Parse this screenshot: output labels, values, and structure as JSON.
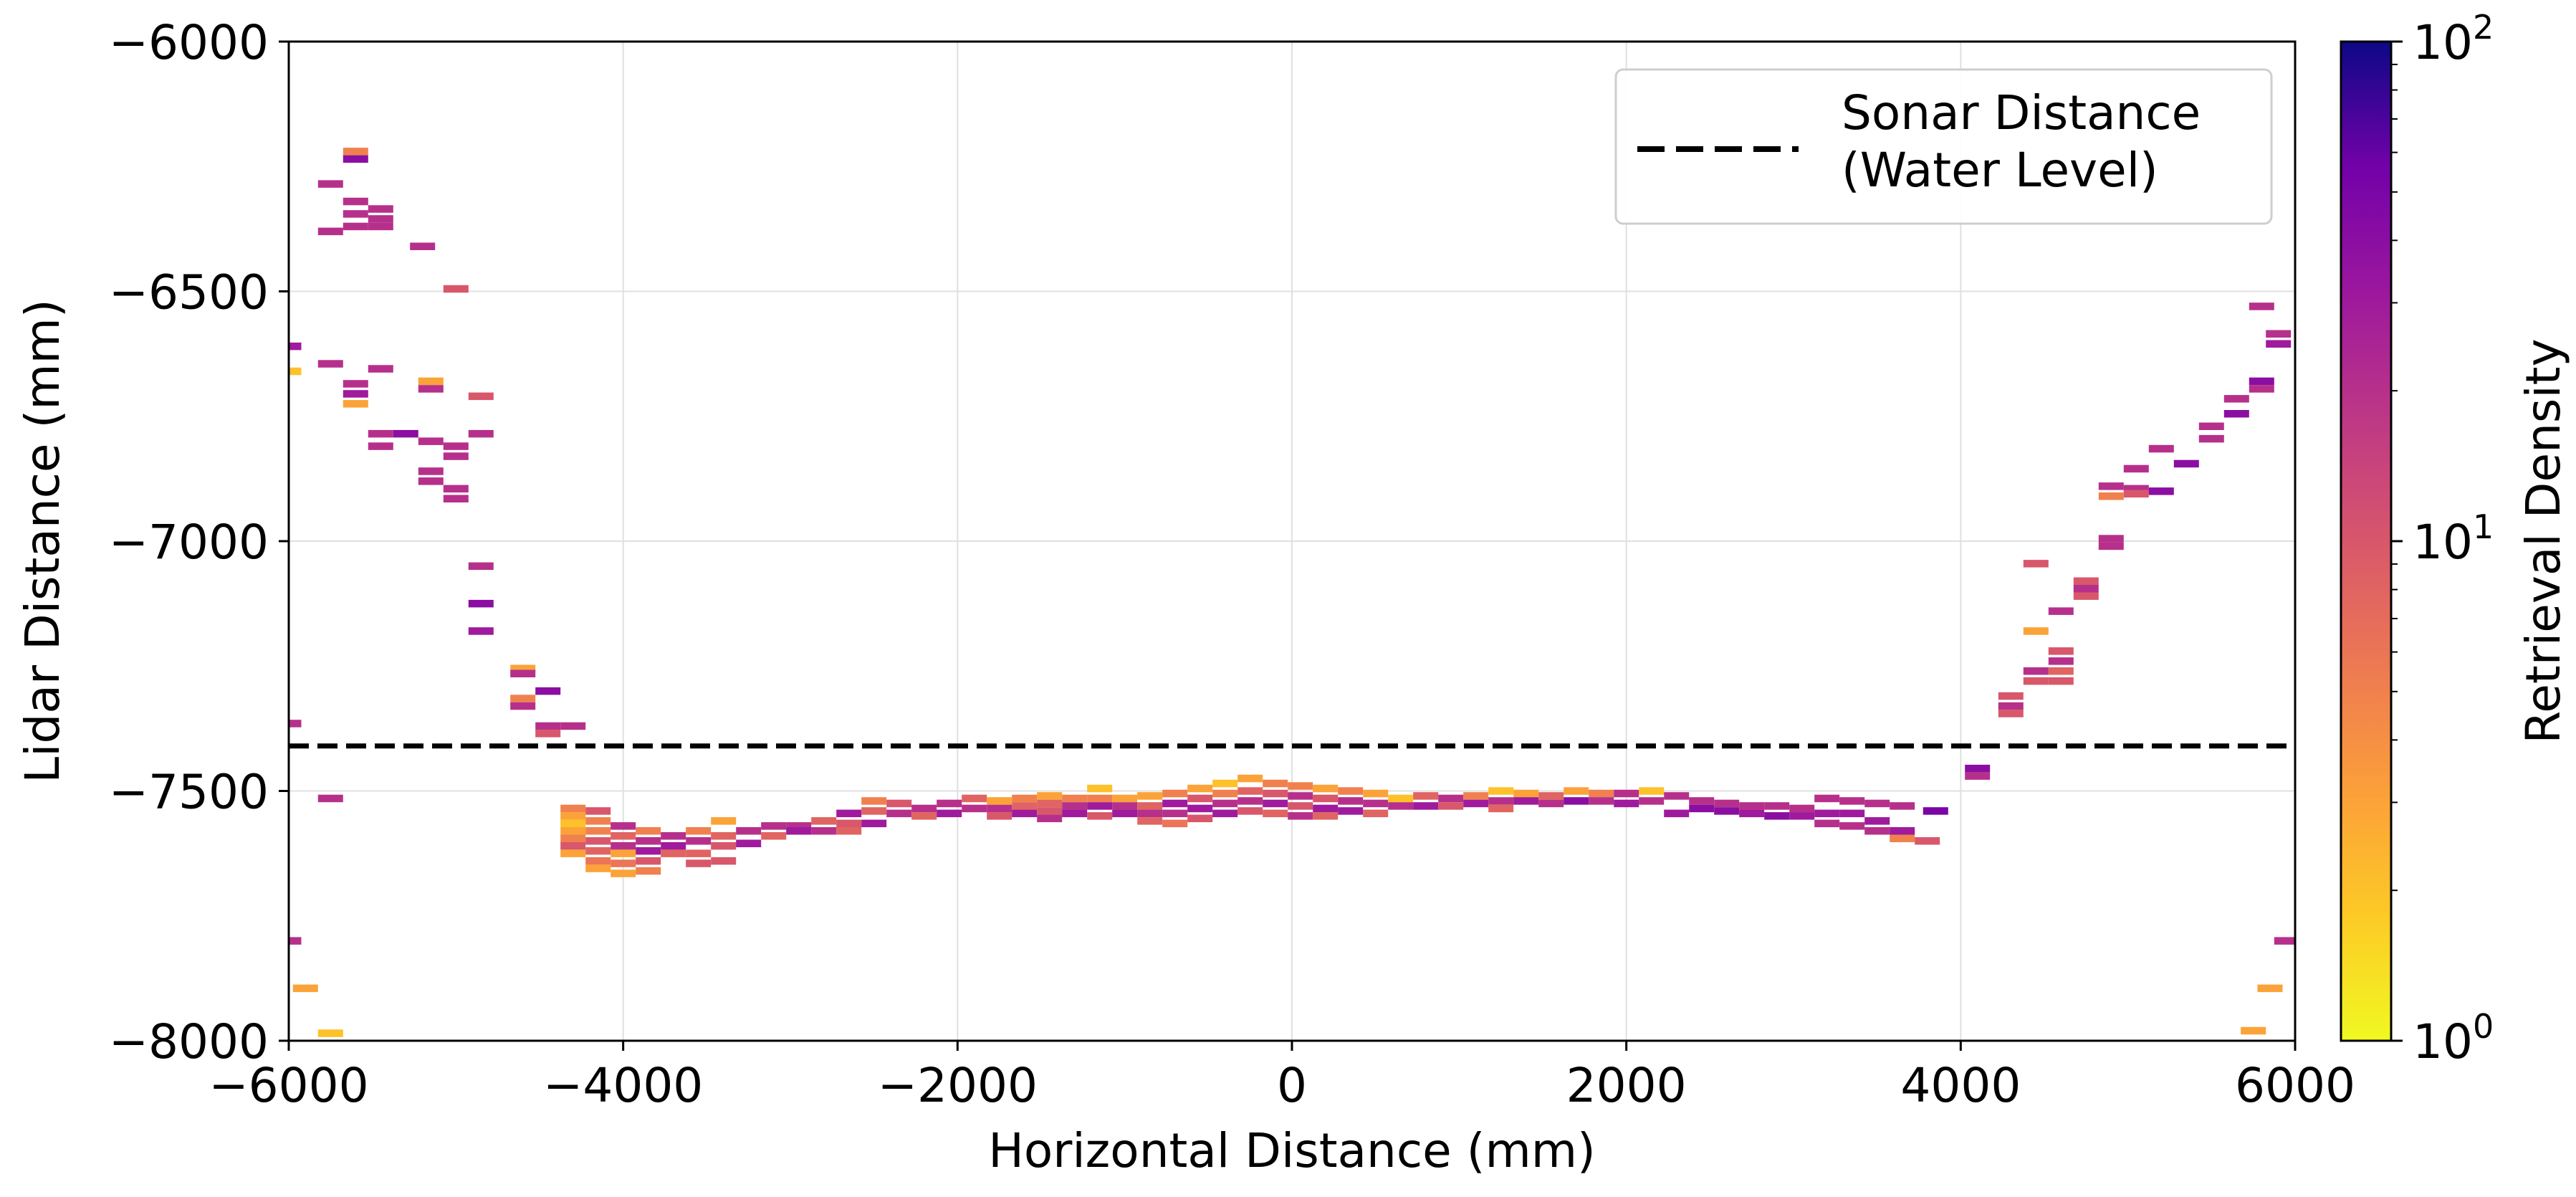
{
  "chart_data": {
    "type": "heatmap",
    "title": "",
    "xlabel": "Horizontal Distance (mm)",
    "ylabel": "Lidar Distance (mm)",
    "xlim": [
      -6000,
      6000
    ],
    "ylim": [
      -8000,
      -6000
    ],
    "x_ticks": [
      -6000,
      -4000,
      -2000,
      0,
      2000,
      4000,
      6000
    ],
    "y_ticks": [
      -6000,
      -6500,
      -7000,
      -7500,
      -8000
    ],
    "x_tick_labels": [
      "−6000",
      "−4000",
      "−2000",
      "0",
      "2000",
      "4000",
      "6000"
    ],
    "y_tick_labels": [
      "−6000",
      "−6500",
      "−7000",
      "−7500",
      "−8000"
    ],
    "grid": true,
    "colormap": "plasma_r",
    "colorbar": {
      "label": "Retrieval Density",
      "scale": "log",
      "range": [
        1,
        100
      ],
      "ticks": [
        {
          "value": 1,
          "base": "10",
          "exp": "0"
        },
        {
          "value": 10,
          "base": "10",
          "exp": "1"
        },
        {
          "value": 100,
          "base": "10",
          "exp": "2"
        }
      ]
    },
    "reference_line": {
      "label_line1": "Sonar Distance",
      "label_line2": "(Water Level)",
      "y": -7410,
      "style": "dashed",
      "color": "#000000"
    },
    "legend_position": "top-right",
    "bins_note": "cells: [x_center_mm, y_center_mm, density]",
    "cells": [
      [
        -6000,
        -6610,
        30
      ],
      [
        -6000,
        -6660,
        2
      ],
      [
        -6000,
        -7365,
        20
      ],
      [
        -6000,
        -7800,
        20
      ],
      [
        -5900,
        -7895,
        3
      ],
      [
        -5750,
        -7985,
        2
      ],
      [
        -5750,
        -6285,
        20
      ],
      [
        -5750,
        -6380,
        20
      ],
      [
        -5750,
        -6645,
        20
      ],
      [
        -5750,
        -7515,
        20
      ],
      [
        -5600,
        -6220,
        5
      ],
      [
        -5600,
        -6235,
        40
      ],
      [
        -5600,
        -6320,
        20
      ],
      [
        -5600,
        -6345,
        20
      ],
      [
        -5600,
        -6370,
        20
      ],
      [
        -5450,
        -6335,
        20
      ],
      [
        -5450,
        -6355,
        20
      ],
      [
        -5450,
        -6370,
        20
      ],
      [
        -5600,
        -6685,
        20
      ],
      [
        -5600,
        -6705,
        30
      ],
      [
        -5600,
        -6725,
        3
      ],
      [
        -5450,
        -6655,
        20
      ],
      [
        -5450,
        -6785,
        20
      ],
      [
        -5450,
        -6810,
        20
      ],
      [
        -5300,
        -6785,
        40
      ],
      [
        -5200,
        -6410,
        20
      ],
      [
        -5150,
        -6680,
        3
      ],
      [
        -5150,
        -6695,
        20
      ],
      [
        -5150,
        -6800,
        20
      ],
      [
        -5150,
        -6860,
        20
      ],
      [
        -5150,
        -6880,
        20
      ],
      [
        -5000,
        -6810,
        20
      ],
      [
        -5000,
        -6830,
        20
      ],
      [
        -5000,
        -6895,
        20
      ],
      [
        -5000,
        -6915,
        20
      ],
      [
        -5000,
        -6495,
        10
      ],
      [
        -4850,
        -6710,
        10
      ],
      [
        -4850,
        -6785,
        20
      ],
      [
        -4850,
        -7050,
        20
      ],
      [
        -4850,
        -7125,
        40
      ],
      [
        -4850,
        -7180,
        30
      ],
      [
        -4600,
        -7255,
        3
      ],
      [
        -4600,
        -7265,
        20
      ],
      [
        -4600,
        -7315,
        5
      ],
      [
        -4600,
        -7330,
        20
      ],
      [
        -4450,
        -7300,
        40
      ],
      [
        -4450,
        -7370,
        20
      ],
      [
        -4450,
        -7385,
        10
      ],
      [
        -4300,
        -7370,
        20
      ],
      [
        -4300,
        -7535,
        5
      ],
      [
        -4300,
        -7550,
        3
      ],
      [
        -4300,
        -7565,
        2
      ],
      [
        -4300,
        -7580,
        3
      ],
      [
        -4300,
        -7595,
        5
      ],
      [
        -4300,
        -7610,
        10
      ],
      [
        -4300,
        -7625,
        3
      ],
      [
        -4150,
        -7540,
        10
      ],
      [
        -4150,
        -7560,
        5
      ],
      [
        -4150,
        -7580,
        5
      ],
      [
        -4150,
        -7600,
        10
      ],
      [
        -4150,
        -7620,
        8
      ],
      [
        -4150,
        -7640,
        6
      ],
      [
        -4150,
        -7655,
        3
      ],
      [
        -4000,
        -7570,
        20
      ],
      [
        -4000,
        -7590,
        8
      ],
      [
        -4000,
        -7610,
        20
      ],
      [
        -4000,
        -7625,
        3
      ],
      [
        -4000,
        -7645,
        6
      ],
      [
        -4000,
        -7665,
        3
      ],
      [
        -3850,
        -7580,
        5
      ],
      [
        -3850,
        -7600,
        20
      ],
      [
        -3850,
        -7620,
        30
      ],
      [
        -3850,
        -7640,
        10
      ],
      [
        -3850,
        -7660,
        5
      ],
      [
        -3700,
        -7590,
        20
      ],
      [
        -3700,
        -7610,
        30
      ],
      [
        -3700,
        -7625,
        8
      ],
      [
        -3550,
        -7580,
        5
      ],
      [
        -3550,
        -7600,
        20
      ],
      [
        -3550,
        -7625,
        8
      ],
      [
        -3550,
        -7645,
        10
      ],
      [
        -3400,
        -7560,
        3
      ],
      [
        -3400,
        -7590,
        8
      ],
      [
        -3400,
        -7610,
        10
      ],
      [
        -3400,
        -7640,
        10
      ],
      [
        -3250,
        -7580,
        20
      ],
      [
        -3250,
        -7605,
        30
      ],
      [
        -3100,
        -7570,
        20
      ],
      [
        -3100,
        -7590,
        8
      ],
      [
        -2950,
        -7570,
        20
      ],
      [
        -2950,
        -7580,
        30
      ],
      [
        -2800,
        -7560,
        8
      ],
      [
        -2800,
        -7580,
        20
      ],
      [
        -2650,
        -7545,
        30
      ],
      [
        -2650,
        -7565,
        10
      ],
      [
        -2650,
        -7580,
        8
      ],
      [
        -2500,
        -7520,
        5
      ],
      [
        -2500,
        -7540,
        8
      ],
      [
        -2500,
        -7565,
        30
      ],
      [
        -2350,
        -7525,
        10
      ],
      [
        -2350,
        -7545,
        20
      ],
      [
        -2200,
        -7535,
        20
      ],
      [
        -2200,
        -7550,
        8
      ],
      [
        -2050,
        -7525,
        20
      ],
      [
        -2050,
        -7545,
        30
      ],
      [
        -1900,
        -7515,
        8
      ],
      [
        -1900,
        -7535,
        20
      ],
      [
        -1750,
        -7520,
        3
      ],
      [
        -1750,
        -7535,
        20
      ],
      [
        -1750,
        -7550,
        10
      ],
      [
        -1600,
        -7515,
        5
      ],
      [
        -1600,
        -7530,
        8
      ],
      [
        -1600,
        -7545,
        30
      ],
      [
        -1450,
        -7510,
        3
      ],
      [
        -1450,
        -7525,
        8
      ],
      [
        -1450,
        -7540,
        10
      ],
      [
        -1450,
        -7555,
        20
      ],
      [
        -1300,
        -7515,
        5
      ],
      [
        -1300,
        -7530,
        20
      ],
      [
        -1300,
        -7545,
        30
      ],
      [
        -1150,
        -7495,
        2
      ],
      [
        -1150,
        -7515,
        5
      ],
      [
        -1150,
        -7530,
        30
      ],
      [
        -1150,
        -7550,
        10
      ],
      [
        -1000,
        -7515,
        3
      ],
      [
        -1000,
        -7530,
        20
      ],
      [
        -1000,
        -7545,
        30
      ],
      [
        -850,
        -7510,
        3
      ],
      [
        -850,
        -7530,
        8
      ],
      [
        -850,
        -7545,
        20
      ],
      [
        -850,
        -7560,
        8
      ],
      [
        -700,
        -7505,
        5
      ],
      [
        -700,
        -7525,
        30
      ],
      [
        -700,
        -7545,
        20
      ],
      [
        -700,
        -7565,
        6
      ],
      [
        -550,
        -7495,
        3
      ],
      [
        -550,
        -7515,
        10
      ],
      [
        -550,
        -7535,
        30
      ],
      [
        -550,
        -7555,
        10
      ],
      [
        -400,
        -7485,
        2
      ],
      [
        -400,
        -7505,
        5
      ],
      [
        -400,
        -7525,
        20
      ],
      [
        -400,
        -7545,
        30
      ],
      [
        -250,
        -7475,
        3
      ],
      [
        -250,
        -7500,
        8
      ],
      [
        -250,
        -7520,
        20
      ],
      [
        -250,
        -7540,
        10
      ],
      [
        -100,
        -7485,
        5
      ],
      [
        -100,
        -7505,
        10
      ],
      [
        -100,
        -7525,
        30
      ],
      [
        -100,
        -7545,
        8
      ],
      [
        50,
        -7490,
        5
      ],
      [
        50,
        -7510,
        20
      ],
      [
        50,
        -7530,
        10
      ],
      [
        50,
        -7550,
        20
      ],
      [
        200,
        -7495,
        3
      ],
      [
        200,
        -7515,
        10
      ],
      [
        200,
        -7535,
        30
      ],
      [
        200,
        -7550,
        8
      ],
      [
        350,
        -7500,
        5
      ],
      [
        350,
        -7520,
        20
      ],
      [
        350,
        -7540,
        30
      ],
      [
        500,
        -7505,
        3
      ],
      [
        500,
        -7525,
        20
      ],
      [
        500,
        -7545,
        8
      ],
      [
        650,
        -7515,
        2
      ],
      [
        650,
        -7530,
        20
      ],
      [
        800,
        -7510,
        8
      ],
      [
        800,
        -7530,
        30
      ],
      [
        950,
        -7515,
        20
      ],
      [
        950,
        -7530,
        10
      ],
      [
        1100,
        -7510,
        5
      ],
      [
        1100,
        -7525,
        30
      ],
      [
        1250,
        -7500,
        2
      ],
      [
        1250,
        -7520,
        20
      ],
      [
        1250,
        -7535,
        8
      ],
      [
        1400,
        -7505,
        3
      ],
      [
        1400,
        -7520,
        30
      ],
      [
        1550,
        -7510,
        8
      ],
      [
        1550,
        -7525,
        20
      ],
      [
        1700,
        -7500,
        3
      ],
      [
        1700,
        -7520,
        40
      ],
      [
        1850,
        -7505,
        5
      ],
      [
        1850,
        -7520,
        20
      ],
      [
        2000,
        -7505,
        20
      ],
      [
        2000,
        -7525,
        30
      ],
      [
        2150,
        -7500,
        2
      ],
      [
        2150,
        -7520,
        20
      ],
      [
        2300,
        -7510,
        20
      ],
      [
        2300,
        -7545,
        30
      ],
      [
        2450,
        -7520,
        20
      ],
      [
        2450,
        -7535,
        40
      ],
      [
        2600,
        -7525,
        20
      ],
      [
        2600,
        -7540,
        40
      ],
      [
        2750,
        -7530,
        20
      ],
      [
        2750,
        -7545,
        30
      ],
      [
        2900,
        -7530,
        20
      ],
      [
        2900,
        -7550,
        40
      ],
      [
        3050,
        -7535,
        20
      ],
      [
        3050,
        -7550,
        30
      ],
      [
        3200,
        -7515,
        20
      ],
      [
        3200,
        -7545,
        30
      ],
      [
        3200,
        -7565,
        20
      ],
      [
        3350,
        -7520,
        20
      ],
      [
        3350,
        -7545,
        30
      ],
      [
        3350,
        -7570,
        20
      ],
      [
        3500,
        -7525,
        20
      ],
      [
        3500,
        -7560,
        30
      ],
      [
        3500,
        -7580,
        20
      ],
      [
        3650,
        -7530,
        20
      ],
      [
        3650,
        -7580,
        30
      ],
      [
        3650,
        -7595,
        5
      ],
      [
        3800,
        -7600,
        10
      ],
      [
        3850,
        -7540,
        50
      ],
      [
        4100,
        -7455,
        40
      ],
      [
        4100,
        -7470,
        20
      ],
      [
        4300,
        -7310,
        10
      ],
      [
        4300,
        -7330,
        20
      ],
      [
        4300,
        -7345,
        10
      ],
      [
        4450,
        -7045,
        10
      ],
      [
        4450,
        -7180,
        3
      ],
      [
        4450,
        -7260,
        20
      ],
      [
        4450,
        -7280,
        10
      ],
      [
        4600,
        -7140,
        20
      ],
      [
        4600,
        -7220,
        10
      ],
      [
        4600,
        -7240,
        20
      ],
      [
        4600,
        -7260,
        8
      ],
      [
        4600,
        -7280,
        10
      ],
      [
        4750,
        -7080,
        10
      ],
      [
        4750,
        -7095,
        20
      ],
      [
        4750,
        -7110,
        10
      ],
      [
        4900,
        -6890,
        20
      ],
      [
        4900,
        -6910,
        5
      ],
      [
        4900,
        -6995,
        20
      ],
      [
        4900,
        -7010,
        20
      ],
      [
        5050,
        -6855,
        20
      ],
      [
        5050,
        -6895,
        20
      ],
      [
        5050,
        -6905,
        10
      ],
      [
        5200,
        -6815,
        20
      ],
      [
        5200,
        -6900,
        40
      ],
      [
        5350,
        -6845,
        40
      ],
      [
        5500,
        -6770,
        20
      ],
      [
        5500,
        -6795,
        20
      ],
      [
        5650,
        -6715,
        20
      ],
      [
        5650,
        -6745,
        40
      ],
      [
        5800,
        -6530,
        20
      ],
      [
        5800,
        -6680,
        40
      ],
      [
        5800,
        -6695,
        20
      ],
      [
        5900,
        -6605,
        30
      ],
      [
        5900,
        -6585,
        20
      ],
      [
        5750,
        -7980,
        3
      ],
      [
        5850,
        -7895,
        3
      ],
      [
        5950,
        -7800,
        20
      ]
    ]
  }
}
